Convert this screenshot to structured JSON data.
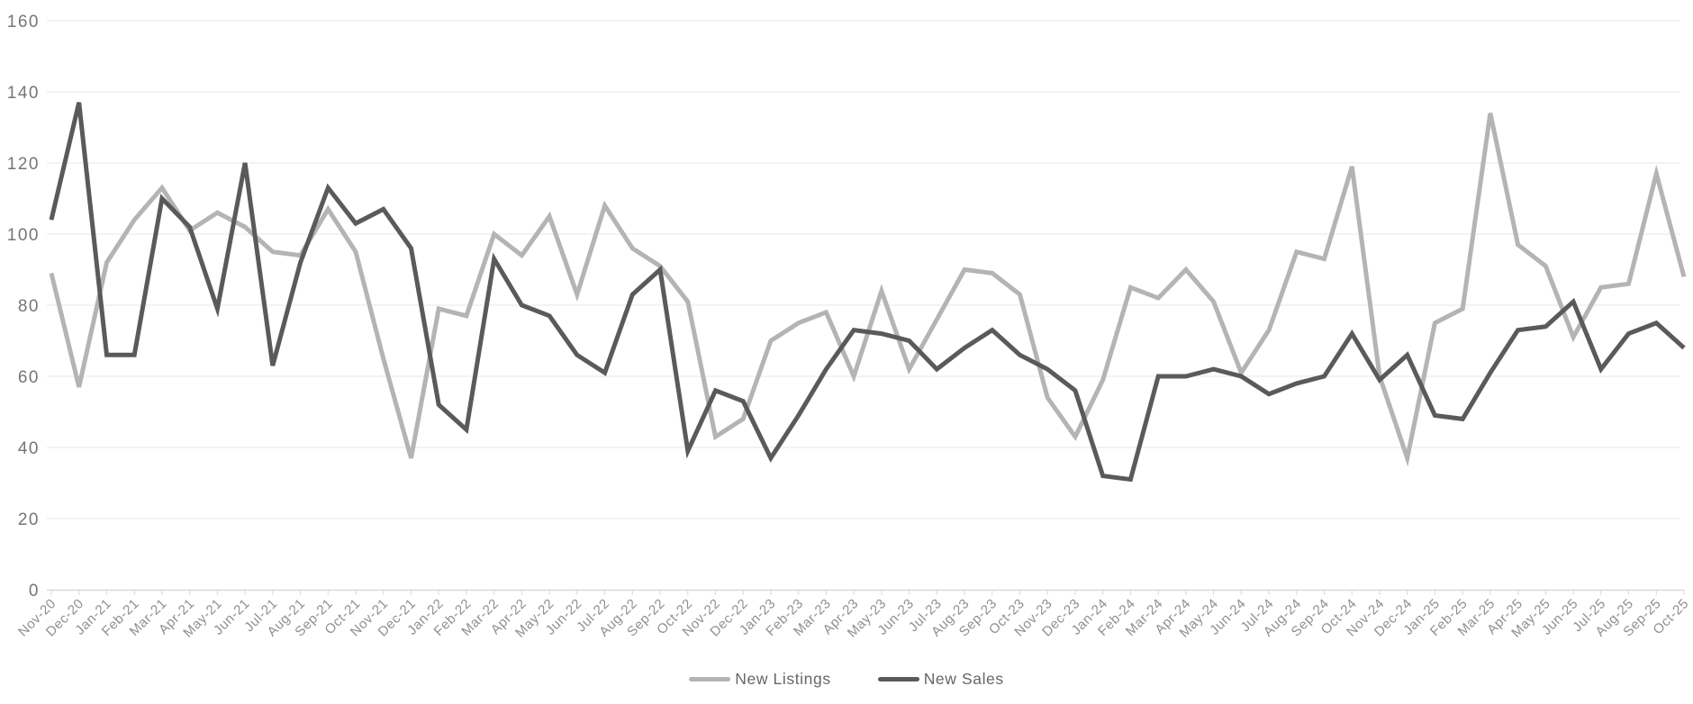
{
  "chart_data": {
    "type": "line",
    "title": "",
    "xlabel": "",
    "ylabel": "",
    "ylim": [
      0,
      160
    ],
    "y_ticks": [
      0,
      20,
      40,
      60,
      80,
      100,
      120,
      140,
      160
    ],
    "grid": "horizontal",
    "legend_position": "bottom-center",
    "x": [
      "Nov-20",
      "Dec-20",
      "Jan-21",
      "Feb-21",
      "Mar-21",
      "Apr-21",
      "May-21",
      "Jun-21",
      "Jul-21",
      "Aug-21",
      "Sep-21",
      "Oct-21",
      "Nov-21",
      "Dec-21",
      "Jan-22",
      "Feb-22",
      "Mar-22",
      "Apr-22",
      "May-22",
      "Jun-22",
      "Jul-22",
      "Aug-22",
      "Sep-22",
      "Oct-22",
      "Nov-22",
      "Dec-22",
      "Jan-23",
      "Feb-23",
      "Mar-23",
      "Apr-23",
      "May-23",
      "Jun-23",
      "Jul-23",
      "Aug-23",
      "Sep-23",
      "Oct-23",
      "Nov-23",
      "Dec-23",
      "Jan-24",
      "Feb-24",
      "Mar-24",
      "Apr-24",
      "May-24",
      "Jun-24",
      "Jul-24",
      "Aug-24",
      "Sep-24",
      "Oct-24",
      "Nov-24",
      "Dec-24",
      "Jan-25",
      "Feb-25",
      "Mar-25",
      "Apr-25",
      "May-25",
      "Jun-25",
      "Jul-25",
      "Aug-25",
      "Sep-25",
      "Oct-25"
    ],
    "series": [
      {
        "name": "New Listings",
        "color": "#b4b4b4",
        "values": [
          89,
          57,
          92,
          104,
          113,
          101,
          106,
          102,
          95,
          94,
          107,
          95,
          65,
          37,
          79,
          77,
          100,
          94,
          105,
          83,
          108,
          96,
          91,
          81,
          43,
          48,
          70,
          75,
          78,
          60,
          84,
          62,
          76,
          90,
          89,
          83,
          54,
          43,
          59,
          85,
          82,
          90,
          81,
          61,
          73,
          95,
          93,
          119,
          60,
          37,
          75,
          79,
          134,
          97,
          91,
          71,
          85,
          86,
          117,
          88
        ]
      },
      {
        "name": "New Sales",
        "color": "#5a5a5a",
        "values": [
          104,
          137,
          66,
          66,
          110,
          102,
          79,
          120,
          63,
          92,
          113,
          103,
          107,
          96,
          52,
          45,
          93,
          80,
          77,
          66,
          61,
          83,
          90,
          39,
          56,
          53,
          37,
          49,
          62,
          73,
          72,
          70,
          62,
          68,
          73,
          66,
          62,
          56,
          32,
          31,
          60,
          60,
          62,
          60,
          55,
          58,
          60,
          72,
          59,
          66,
          49,
          48,
          61,
          73,
          74,
          81,
          62,
          72,
          75,
          68
        ]
      }
    ],
    "colors": {
      "grid": "#e7e7e7",
      "axis": "#d9d9d9",
      "y_tick_label": "#757575",
      "x_tick_label": "#8f8f8f",
      "legend_text": "#666666",
      "background": "#ffffff"
    }
  }
}
